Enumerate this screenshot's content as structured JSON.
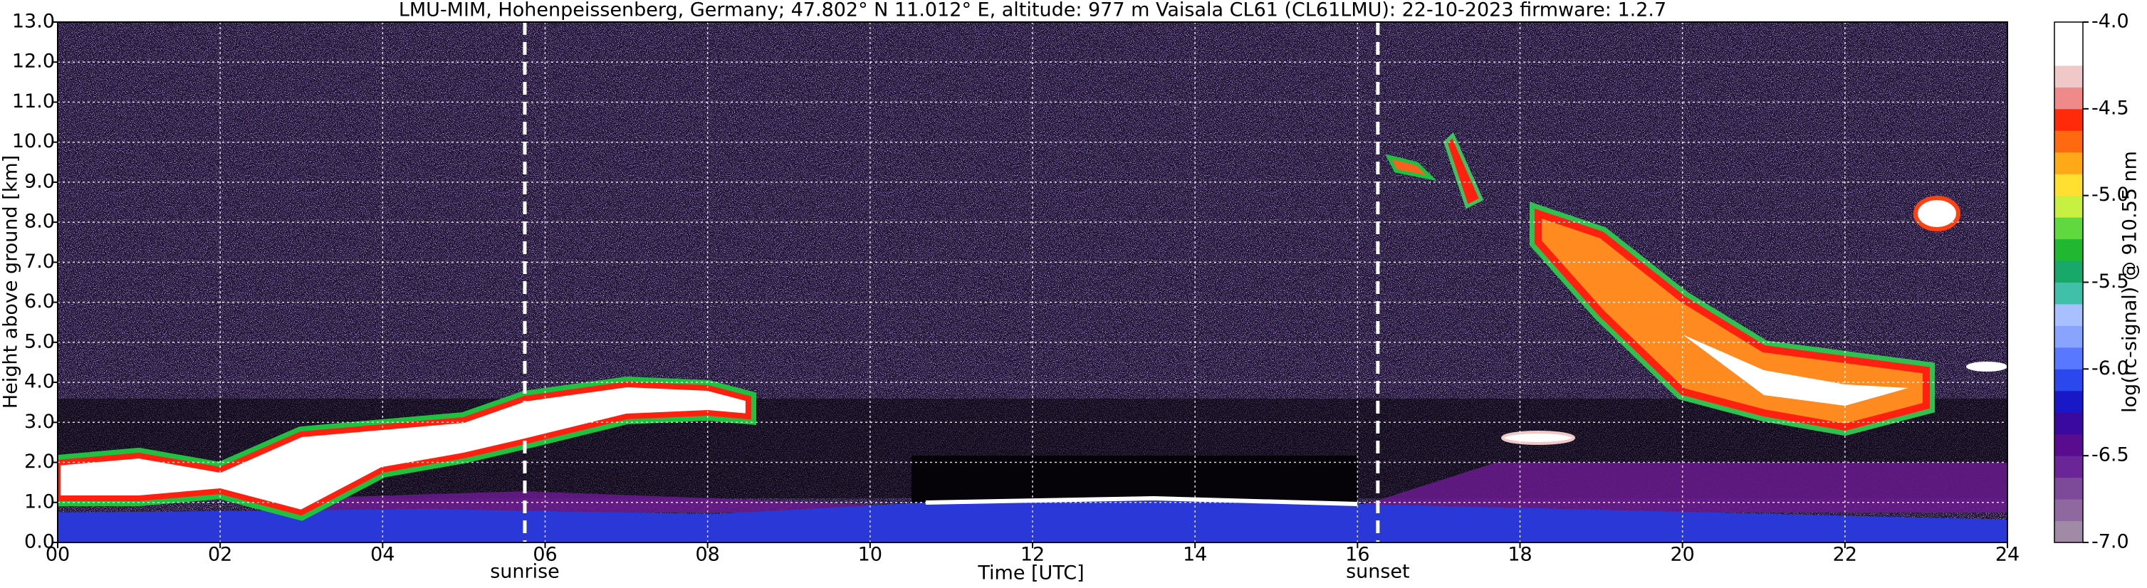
{
  "chart_data": {
    "type": "heatmap",
    "title": "LMU-MIM, Hohenpeissenberg, Germany; 47.802° N 11.012° E, altitude: 977 m    Vaisala CL61 (CL61LMU): 22-10-2023    firmware: 1.2.7",
    "x_label": "Time [UTC]",
    "y_label": "Height above ground [km]",
    "xlim": [
      0,
      24
    ],
    "xticks": [
      {
        "value": 0,
        "label": "00"
      },
      {
        "value": 2,
        "label": "02"
      },
      {
        "value": 4,
        "label": "04"
      },
      {
        "value": 6,
        "label": "06"
      },
      {
        "value": 8,
        "label": "08"
      },
      10,
      12,
      14,
      16,
      18,
      20,
      22,
      24
    ],
    "ylim": [
      0,
      13
    ],
    "yticks": [
      {
        "value": 0,
        "label": "0.0"
      },
      {
        "value": 1,
        "label": "1.0"
      },
      {
        "value": 2,
        "label": "2.0"
      },
      {
        "value": 3,
        "label": "3.0"
      },
      {
        "value": 4,
        "label": "4.0"
      },
      {
        "value": 5,
        "label": "5.0"
      },
      {
        "value": 6,
        "label": "6.0"
      },
      {
        "value": 7,
        "label": "7.0"
      },
      {
        "value": 8,
        "label": "8.0"
      },
      {
        "value": 9,
        "label": "9.0"
      },
      {
        "value": 10,
        "label": "10.0"
      },
      {
        "value": 11,
        "label": "11.0"
      },
      {
        "value": 12,
        "label": "12.0"
      },
      {
        "value": 13,
        "label": "13.0"
      }
    ],
    "grid": true,
    "annotations": [
      {
        "text": "sunrise",
        "x": 5.75
      },
      {
        "text": "sunset",
        "x": 16.25
      }
    ],
    "colorbar": {
      "label": "log(rc-signal) @ 910.55 nm",
      "lim": [
        -7.0,
        -4.0
      ],
      "ticks": [
        {
          "value": -7,
          "label": "-7.0"
        },
        {
          "value": -6.5,
          "label": "-6.5"
        },
        {
          "value": -6,
          "label": "-6.0"
        },
        {
          "value": -5.5,
          "label": "-5.5"
        },
        {
          "value": -5,
          "label": "-5.0"
        },
        {
          "value": -4.5,
          "label": "-4.5"
        },
        {
          "value": -4,
          "label": "-4.0"
        }
      ],
      "colors": [
        "#a08aa6",
        "#9068a0",
        "#7c4a98",
        "#6a2696",
        "#5a0c90",
        "#3a0aa0",
        "#1818c8",
        "#2a48ee",
        "#5878ff",
        "#88a4ff",
        "#a8c0ff",
        "#40c0a8",
        "#18a86a",
        "#20b830",
        "#60d840",
        "#c8f040",
        "#ffe030",
        "#ffa818",
        "#ff6a10",
        "#ff2a08",
        "#f08a8a",
        "#f0c8c8",
        "#ffffff",
        "#ffffff"
      ]
    }
  }
}
